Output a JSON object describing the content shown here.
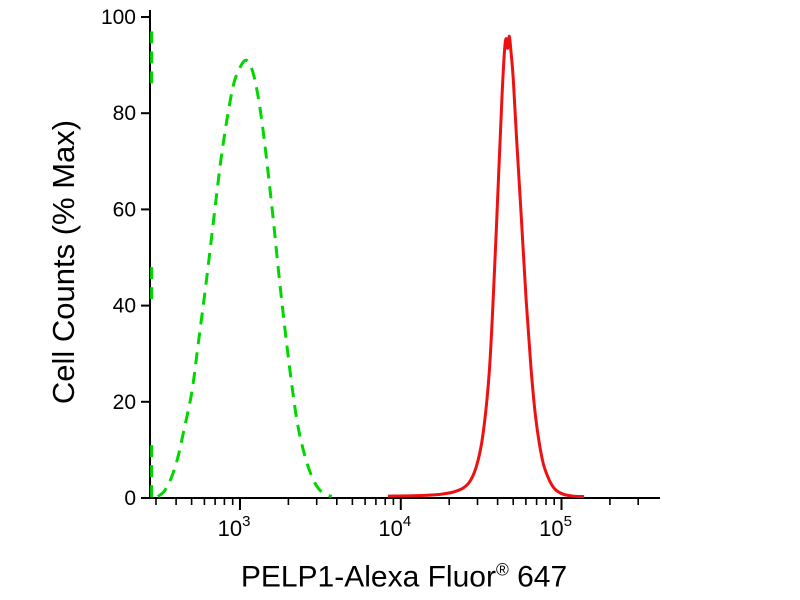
{
  "page": {
    "background": "#ffffff"
  },
  "chart_data": {
    "type": "line",
    "chart_kind": "flow-cytometry-overlay-histogram",
    "title": "",
    "xlabel": "PELP1-Alexa Fluor® 647",
    "xlabel_parts": {
      "pre": "PELP1-Alexa Fluor",
      "sup": "®",
      "post": " 647"
    },
    "ylabel": "Cell Counts (% Max)",
    "axis_color": "#000000",
    "text_color": "#000000",
    "grid": "off",
    "legend": "none",
    "x_axis": {
      "scale": "log10",
      "range_log10": [
        2.44,
        5.6
      ],
      "major_ticks": [
        {
          "log10": 3,
          "base": "10",
          "exp": "3"
        },
        {
          "log10": 4,
          "base": "10",
          "exp": "4"
        },
        {
          "log10": 5,
          "base": "10",
          "exp": "5"
        }
      ],
      "minor_ticks": "log10 subdivisions 2-9 each decade"
    },
    "y_axis": {
      "range": [
        0,
        100
      ],
      "ticks": [
        0,
        20,
        40,
        60,
        80,
        100
      ]
    },
    "series": [
      {
        "name": "green-dashed-curve",
        "color": "#00d600",
        "line_style": "dashed",
        "line_width": 3,
        "dash_pattern": [
          12,
          8
        ],
        "peak": {
          "x_log10": 3.04,
          "y_pct_max": 91
        },
        "segments": [
          [
            [
              2.45,
              97
            ],
            [
              2.45,
              85
            ]
          ],
          [
            [
              2.45,
              48
            ],
            [
              2.45,
              40
            ]
          ],
          [
            [
              2.45,
              11
            ],
            [
              2.45,
              0
            ]
          ],
          [
            [
              2.49,
              0.3
            ],
            [
              2.53,
              1.5
            ],
            [
              2.57,
              4
            ],
            [
              2.61,
              8
            ],
            [
              2.65,
              14
            ],
            [
              2.7,
              22
            ],
            [
              2.74,
              32
            ],
            [
              2.79,
              45
            ],
            [
              2.84,
              59
            ],
            [
              2.88,
              70
            ],
            [
              2.92,
              79
            ],
            [
              2.96,
              86
            ],
            [
              3.0,
              89.5
            ],
            [
              3.04,
              91
            ],
            [
              3.08,
              88.5
            ],
            [
              3.12,
              82
            ],
            [
              3.16,
              72
            ],
            [
              3.2,
              60
            ],
            [
              3.24,
              47
            ],
            [
              3.28,
              35
            ],
            [
              3.32,
              24
            ],
            [
              3.36,
              15
            ],
            [
              3.41,
              8
            ],
            [
              3.46,
              3.5
            ],
            [
              3.51,
              1.2
            ],
            [
              3.57,
              0.3
            ]
          ]
        ]
      },
      {
        "name": "red-solid-curve",
        "color": "#ee1111",
        "line_style": "solid",
        "line_width": 3,
        "peak": {
          "x_log10": 4.66,
          "y_pct_max": 96
        },
        "segments": [
          [
            [
              3.92,
              0.4
            ],
            [
              4.1,
              0.5
            ],
            [
              4.25,
              0.8
            ],
            [
              4.35,
              1.5
            ],
            [
              4.42,
              3
            ],
            [
              4.47,
              6.5
            ],
            [
              4.51,
              13
            ],
            [
              4.55,
              26
            ],
            [
              4.58,
              45
            ],
            [
              4.61,
              68
            ],
            [
              4.63,
              84
            ],
            [
              4.645,
              93
            ],
            [
              4.655,
              95.5
            ],
            [
              4.665,
              93.5
            ],
            [
              4.675,
              96
            ],
            [
              4.685,
              93
            ],
            [
              4.7,
              87
            ],
            [
              4.72,
              75
            ],
            [
              4.75,
              58
            ],
            [
              4.78,
              41
            ],
            [
              4.81,
              27
            ],
            [
              4.84,
              16.5
            ],
            [
              4.88,
              8
            ],
            [
              4.92,
              4
            ],
            [
              4.96,
              1.8
            ],
            [
              5.01,
              0.8
            ],
            [
              5.07,
              0.4
            ],
            [
              5.14,
              0.3
            ]
          ]
        ]
      }
    ]
  }
}
